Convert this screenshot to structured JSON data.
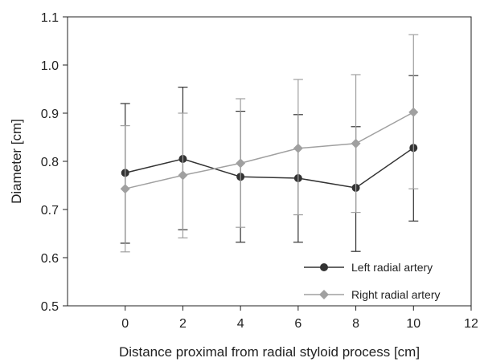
{
  "chart_data": {
    "type": "line",
    "xlabel": "Distance proximal from radial styloid process [cm]",
    "ylabel": "Diameter [cm]",
    "xlim": [
      -2,
      12
    ],
    "ylim": [
      0.5,
      1.1
    ],
    "x_ticks": [
      0,
      2,
      4,
      6,
      8,
      10,
      12
    ],
    "y_ticks": [
      0.5,
      0.6,
      0.7,
      0.8,
      0.9,
      1.0,
      1.1
    ],
    "x_tick_labels": [
      "0",
      "2",
      "4",
      "6",
      "8",
      "10",
      "12"
    ],
    "y_tick_labels": [
      "0.5",
      "0.6",
      "0.7",
      "0.8",
      "0.9",
      "1.0",
      "1.1"
    ],
    "grid": false,
    "legend_position": "bottom-right",
    "series": [
      {
        "name": "Left radial artery",
        "marker": "circle",
        "color": "#333333",
        "x": [
          0,
          2,
          4,
          6,
          8,
          10
        ],
        "y": [
          0.776,
          0.805,
          0.768,
          0.765,
          0.745,
          0.828
        ],
        "err_low": [
          0.63,
          0.658,
          0.632,
          0.632,
          0.613,
          0.676
        ],
        "err_high": [
          0.92,
          0.954,
          0.904,
          0.897,
          0.872,
          0.978
        ]
      },
      {
        "name": "Right radial artery",
        "marker": "diamond",
        "color": "#a0a0a0",
        "x": [
          0,
          2,
          4,
          6,
          8,
          10
        ],
        "y": [
          0.743,
          0.771,
          0.796,
          0.827,
          0.837,
          0.902
        ],
        "err_low": [
          0.612,
          0.641,
          0.663,
          0.689,
          0.694,
          0.743
        ],
        "err_high": [
          0.874,
          0.9,
          0.93,
          0.97,
          0.98,
          1.063
        ]
      }
    ]
  }
}
